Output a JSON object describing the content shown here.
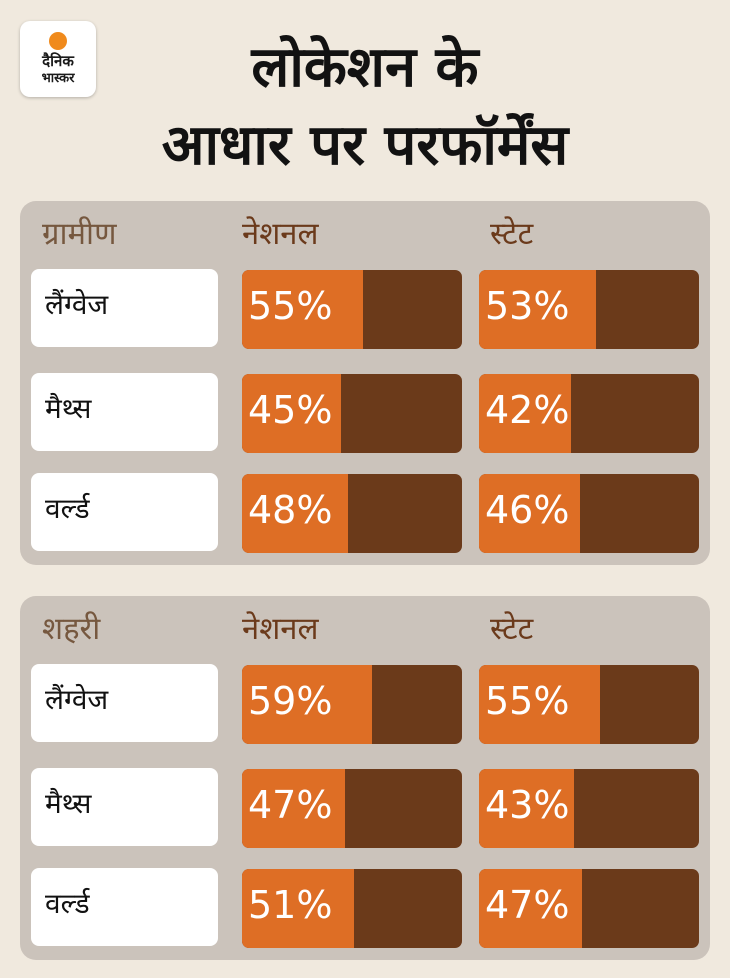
{
  "logo": {
    "line1": "दैनिक",
    "line2": "भास्कर"
  },
  "title_line1": "लोकेशन के",
  "title_line2": "आधार पर परफॉर्मेंस",
  "colors": {
    "background": "#f0e9de",
    "panel": "#cbc3bb",
    "bar_track": "#6b3a1a",
    "bar_fill": "#de6e25",
    "header_text": "#6b3a1b"
  },
  "chart_data": [
    {
      "type": "bar",
      "group": "ग्रामीण",
      "column_headers": [
        "नेशनल",
        "स्टेट"
      ],
      "categories": [
        "लैंग्वेज",
        "मैथ्स",
        "वर्ल्ड"
      ],
      "series": [
        {
          "name": "नेशनल",
          "values": [
            55,
            45,
            48
          ],
          "labels": [
            "55%",
            "45%",
            "48%"
          ]
        },
        {
          "name": "स्टेट",
          "values": [
            53,
            42,
            46
          ],
          "labels": [
            "53%",
            "42%",
            "46%"
          ]
        }
      ],
      "ylim": [
        0,
        100
      ]
    },
    {
      "type": "bar",
      "group": "शहरी",
      "column_headers": [
        "नेशनल",
        "स्टेट"
      ],
      "categories": [
        "लैंग्वेज",
        "मैथ्स",
        "वर्ल्ड"
      ],
      "series": [
        {
          "name": "नेशनल",
          "values": [
            59,
            47,
            51
          ],
          "labels": [
            "59%",
            "47%",
            "51%"
          ]
        },
        {
          "name": "स्टेट",
          "values": [
            55,
            43,
            47
          ],
          "labels": [
            "55%",
            "43%",
            "47%"
          ]
        }
      ],
      "ylim": [
        0,
        100
      ]
    }
  ]
}
